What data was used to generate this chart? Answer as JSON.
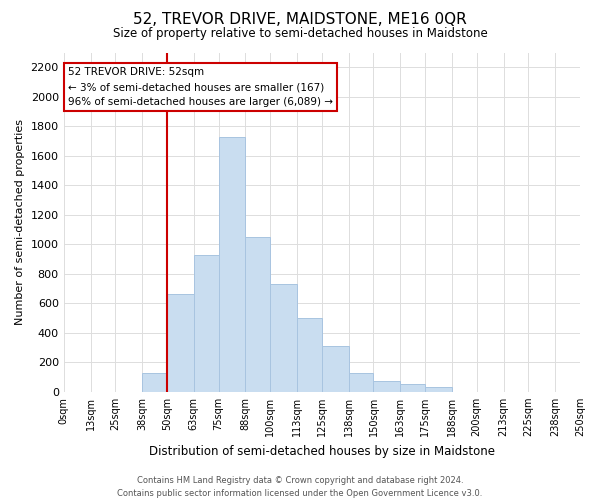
{
  "title": "52, TREVOR DRIVE, MAIDSTONE, ME16 0QR",
  "subtitle": "Size of property relative to semi-detached houses in Maidstone",
  "xlabel": "Distribution of semi-detached houses by size in Maidstone",
  "ylabel": "Number of semi-detached properties",
  "bar_color": "#c9ddf0",
  "bar_edge_color": "#a8c4e0",
  "vline_color": "#cc0000",
  "vline_x": 50,
  "annotation_text": "52 TREVOR DRIVE: 52sqm\n← 3% of semi-detached houses are smaller (167)\n96% of semi-detached houses are larger (6,089) →",
  "annotation_box_edge": "#cc0000",
  "bins": [
    0,
    13,
    25,
    38,
    50,
    63,
    75,
    88,
    100,
    113,
    125,
    138,
    150,
    163,
    175,
    188,
    200,
    213,
    225,
    238,
    250
  ],
  "bin_labels": [
    "0sqm",
    "13sqm",
    "25sqm",
    "38sqm",
    "50sqm",
    "63sqm",
    "75sqm",
    "88sqm",
    "100sqm",
    "113sqm",
    "125sqm",
    "138sqm",
    "150sqm",
    "163sqm",
    "175sqm",
    "188sqm",
    "200sqm",
    "213sqm",
    "225sqm",
    "238sqm",
    "250sqm"
  ],
  "bar_heights": [
    0,
    0,
    0,
    125,
    660,
    925,
    1725,
    1050,
    730,
    500,
    310,
    125,
    70,
    50,
    30,
    0,
    0,
    0,
    0,
    0
  ],
  "ylim": [
    0,
    2300
  ],
  "xlim": [
    0,
    250
  ],
  "yticks": [
    0,
    200,
    400,
    600,
    800,
    1000,
    1200,
    1400,
    1600,
    1800,
    2000,
    2200
  ],
  "footer_text": "Contains HM Land Registry data © Crown copyright and database right 2024.\nContains public sector information licensed under the Open Government Licence v3.0.",
  "background_color": "#ffffff",
  "grid_color": "#dddddd"
}
